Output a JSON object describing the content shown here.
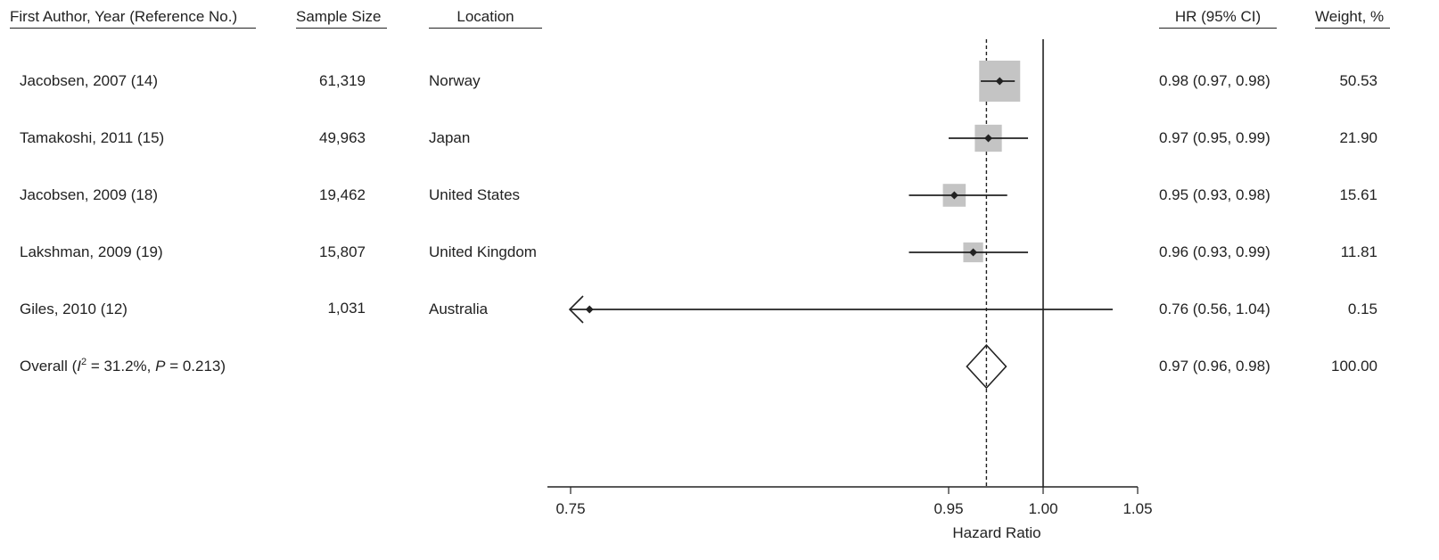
{
  "headers": {
    "study": "First Author, Year (Reference No.)",
    "sample": "Sample Size",
    "location": "Location",
    "hr": "HR (95% CI)",
    "weight": "Weight, %"
  },
  "rows": [
    {
      "study": "Jacobsen, 2007 (14)",
      "sample": "61,319",
      "location": "Norway",
      "hr_text": "0.98 (0.97, 0.98)",
      "weight": "50.53"
    },
    {
      "study": "Tamakoshi, 2011 (15)",
      "sample": "49,963",
      "location": "Japan",
      "hr_text": "0.97 (0.95, 0.99)",
      "weight": "21.90"
    },
    {
      "study": "Jacobsen, 2009 (18)",
      "sample": "19,462",
      "location": "United States",
      "hr_text": "0.95 (0.93, 0.98)",
      "weight": "15.61"
    },
    {
      "study": "Lakshman, 2009 (19)",
      "sample": "15,807",
      "location": "United Kingdom",
      "hr_text": "0.96 (0.93, 0.99)",
      "weight": "11.81"
    },
    {
      "study": "Giles, 2010 (12)",
      "sample": "1,031",
      "location": "Australia",
      "hr_text": "0.76 (0.56, 1.04)",
      "weight": "0.15"
    }
  ],
  "overall": {
    "prefix": "Overall (",
    "i": "I",
    "sup": "2",
    "mid": " = 31.2%, ",
    "p": "P",
    "suffix": " = 0.213)",
    "hr_text": "0.97 (0.96, 0.98)",
    "weight": "100.00"
  },
  "chart_data": {
    "type": "forest",
    "xlabel": "Hazard Ratio",
    "xlim": [
      0.75,
      1.05
    ],
    "ticks": [
      0.75,
      0.95,
      1.0,
      1.05
    ],
    "tick_labels": [
      "0.75",
      "0.95",
      "1.00",
      "1.05"
    ],
    "null_line": 1.0,
    "pooled_line": 0.97,
    "studies": [
      {
        "name": "Jacobsen, 2007 (14)",
        "hr": 0.977,
        "lo": 0.967,
        "hi": 0.985,
        "weight": 50.53
      },
      {
        "name": "Tamakoshi, 2011 (15)",
        "hr": 0.971,
        "lo": 0.95,
        "hi": 0.992,
        "weight": 21.9
      },
      {
        "name": "Jacobsen, 2009 (18)",
        "hr": 0.953,
        "lo": 0.929,
        "hi": 0.981,
        "weight": 15.61
      },
      {
        "name": "Lakshman, 2009 (19)",
        "hr": 0.963,
        "lo": 0.929,
        "hi": 0.992,
        "weight": 11.81
      },
      {
        "name": "Giles, 2010 (12)",
        "hr": 0.76,
        "lo": 0.56,
        "hi": 1.04,
        "weight": 0.15
      }
    ],
    "overall": {
      "hr": 0.97,
      "lo": 0.96,
      "hi": 0.98
    }
  }
}
